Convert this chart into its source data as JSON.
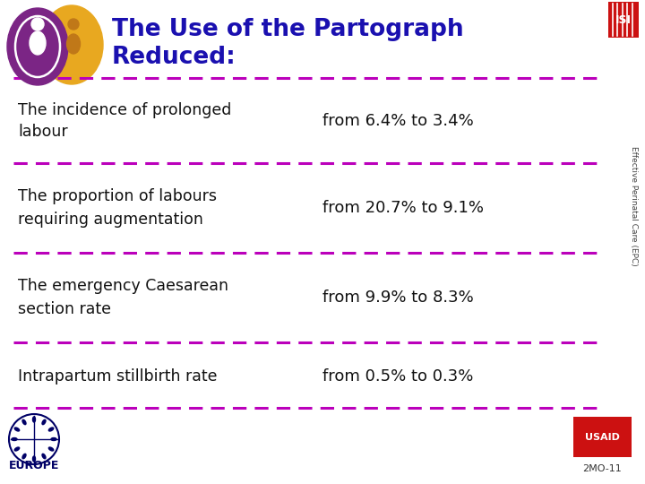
{
  "title_line1": "The Use of the Partograph",
  "title_line2": "Reduced:",
  "title_color": "#1a10b0",
  "background_color": "#ffffff",
  "rows": [
    {
      "left_text": "The incidence of prolonged\nlabour",
      "right_text": "from 6.4% to 3.4%"
    },
    {
      "left_text": "The proportion of labours\nrequiring augmentation",
      "right_text": "from 20.7% to 9.1%"
    },
    {
      "left_text": "The emergency Caesarean\nsection rate",
      "right_text": "from 9.9% to 8.3%"
    },
    {
      "left_text": "Intrapartum stillbirth rate",
      "right_text": "from 0.5% to 0.3%"
    }
  ],
  "divider_color": "#bb00bb",
  "text_color": "#111111",
  "right_text_color": "#111111",
  "sidebar_text": "Effective Perinatal Care (EPC)",
  "sidebar_color": "#444444",
  "footer_text": "2MO-11",
  "footer_color": "#333333",
  "europe_text": "EUROPE",
  "europe_color": "#000066"
}
